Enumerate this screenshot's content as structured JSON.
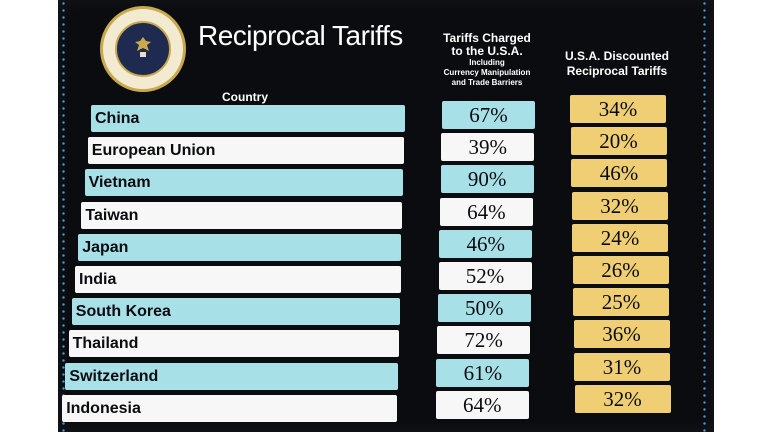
{
  "title": "Reciprocal Tariffs",
  "seal": {
    "name": "seal-of-the-president",
    "text": "SEAL OF THE PRESIDENT OF THE UNITED STATES"
  },
  "headers": {
    "country": "Country",
    "charged_line1": "Tariffs Charged",
    "charged_line2": "to the U.S.A.",
    "charged_note1": "Including",
    "charged_note2": "Currency Manipulation",
    "charged_note3": "and Trade Barriers",
    "discounted_line1": "U.S.A. Discounted",
    "discounted_line2": "Reciprocal Tariffs"
  },
  "rows": [
    {
      "country": "China",
      "charged": "67%",
      "discounted": "34%",
      "charged_value": 67,
      "discounted_value": 34
    },
    {
      "country": "European Union",
      "charged": "39%",
      "discounted": "20%",
      "charged_value": 39,
      "discounted_value": 20
    },
    {
      "country": "Vietnam",
      "charged": "90%",
      "discounted": "46%",
      "charged_value": 90,
      "discounted_value": 46
    },
    {
      "country": "Taiwan",
      "charged": "64%",
      "discounted": "32%",
      "charged_value": 64,
      "discounted_value": 32
    },
    {
      "country": "Japan",
      "charged": "46%",
      "discounted": "24%",
      "charged_value": 46,
      "discounted_value": 24
    },
    {
      "country": "India",
      "charged": "52%",
      "discounted": "26%",
      "charged_value": 52,
      "discounted_value": 26
    },
    {
      "country": "South Korea",
      "charged": "50%",
      "discounted": "25%",
      "charged_value": 50,
      "discounted_value": 25
    },
    {
      "country": "Thailand",
      "charged": "72%",
      "discounted": "36%",
      "charged_value": 72,
      "discounted_value": 36
    },
    {
      "country": "Switzerland",
      "charged": "61%",
      "discounted": "31%",
      "charged_value": 61,
      "discounted_value": 31
    },
    {
      "country": "Indonesia",
      "charged": "64%",
      "discounted": "32%",
      "charged_value": 64,
      "discounted_value": 32
    }
  ],
  "colors": {
    "board": "#0b0c10",
    "row_cyan": "#a8e0e8",
    "row_white": "#f7f7f7",
    "discount_gold": "#f0cf74",
    "dots": "#3aa0e0"
  }
}
